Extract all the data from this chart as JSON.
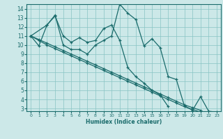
{
  "xlabel": "Humidex (Indice chaleur)",
  "background_color": "#cce8e8",
  "grid_color": "#88c4c4",
  "line_color": "#1a6b6b",
  "xlim": [
    -0.5,
    23.5
  ],
  "ylim": [
    2.7,
    14.5
  ],
  "yticks": [
    3,
    4,
    5,
    6,
    7,
    8,
    9,
    10,
    11,
    12,
    13,
    14
  ],
  "xticks": [
    0,
    1,
    2,
    3,
    4,
    5,
    6,
    7,
    8,
    9,
    10,
    11,
    12,
    13,
    14,
    15,
    16,
    17,
    18,
    19,
    20,
    21,
    22,
    23
  ],
  "line_A_x": [
    0,
    1,
    2,
    3,
    4,
    5,
    6,
    7,
    8,
    9,
    10,
    11,
    12,
    13,
    14,
    15,
    16,
    17,
    18,
    19,
    20,
    21,
    22,
    23
  ],
  "line_A_y": [
    11,
    9.9,
    12.2,
    13.3,
    10.0,
    9.5,
    9.5,
    9.0,
    10.0,
    10.5,
    11.0,
    14.5,
    13.5,
    12.8,
    9.9,
    10.7,
    9.7,
    6.5,
    6.2,
    3.3,
    2.8,
    4.3,
    2.7,
    2.6
  ],
  "line_B_x": [
    0,
    2,
    3,
    4,
    5,
    6,
    7,
    8,
    9,
    10,
    11,
    12,
    13,
    14,
    15,
    16,
    17
  ],
  "line_B_y": [
    11,
    12.2,
    13.2,
    11.0,
    10.3,
    10.8,
    10.3,
    10.5,
    11.8,
    12.2,
    10.5,
    7.5,
    6.5,
    5.8,
    5.0,
    4.5,
    3.2
  ],
  "line_C_x": [
    0,
    1,
    2,
    3,
    4,
    5,
    6,
    7,
    8,
    9,
    10,
    11,
    12,
    13,
    14,
    15,
    16,
    17,
    18,
    19,
    20,
    21
  ],
  "line_C_y": [
    11.0,
    10.6,
    10.2,
    9.8,
    9.4,
    9.0,
    8.6,
    8.2,
    7.8,
    7.4,
    7.0,
    6.6,
    6.2,
    5.8,
    5.4,
    5.0,
    4.6,
    4.2,
    3.8,
    3.4,
    3.1,
    2.8
  ],
  "line_D_x": [
    0,
    1,
    2,
    3,
    4,
    5,
    6,
    7,
    8,
    9,
    10,
    11,
    12,
    13,
    14,
    15,
    16,
    17,
    18,
    19,
    20,
    21
  ],
  "line_D_y": [
    11.0,
    10.5,
    10.0,
    9.6,
    9.2,
    8.8,
    8.4,
    8.0,
    7.6,
    7.2,
    6.8,
    6.4,
    6.0,
    5.6,
    5.2,
    4.8,
    4.4,
    4.0,
    3.6,
    3.2,
    2.9,
    2.6
  ]
}
